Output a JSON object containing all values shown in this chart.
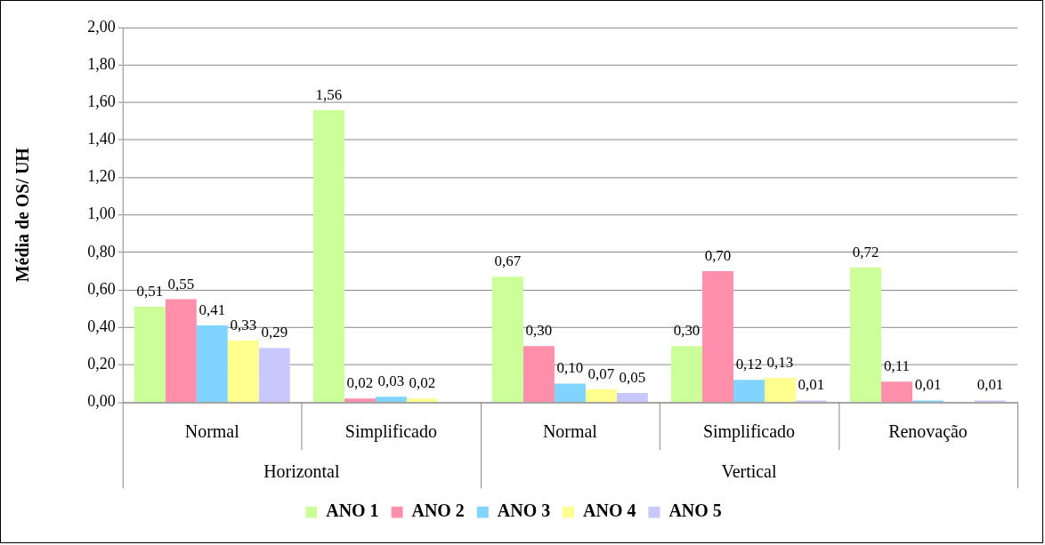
{
  "chart_data": {
    "type": "bar",
    "ylabel": "Média de OS/ UH",
    "categories": [
      "Normal",
      "Simplificado",
      "Normal",
      "Simplificado",
      "Renovação"
    ],
    "annotations": [
      "Horizontal",
      "Vertical"
    ],
    "series": [
      {
        "name": "ANO 1",
        "color": "#ccff99",
        "values": [
          0.51,
          1.56,
          0.67,
          0.3,
          0.72
        ],
        "value_labels": [
          "0,51",
          "1,56",
          "0,67",
          "0,30",
          "0,72"
        ]
      },
      {
        "name": "ANO 2",
        "color": "#ff8fab",
        "values": [
          0.55,
          0.02,
          0.3,
          0.7,
          0.11
        ],
        "value_labels": [
          "0,55",
          "0,02",
          "0,30",
          "0,70",
          "0,11"
        ]
      },
      {
        "name": "ANO 3",
        "color": "#80d4ff",
        "values": [
          0.41,
          0.03,
          0.1,
          0.12,
          0.01
        ],
        "value_labels": [
          "0,41",
          "0,03",
          "0,10",
          "0,12",
          "0,01"
        ]
      },
      {
        "name": "ANO 4",
        "color": "#ffff8f",
        "values": [
          0.33,
          0.02,
          0.07,
          0.13,
          null
        ],
        "value_labels": [
          "0,33",
          "0,02",
          "0,07",
          "0,13",
          null
        ]
      },
      {
        "name": "ANO 5",
        "color": "#c8c8ff",
        "values": [
          0.29,
          null,
          0.05,
          0.01,
          0.01
        ],
        "value_labels": [
          "0,29",
          null,
          "0,05",
          "0,01",
          "0,01"
        ]
      }
    ],
    "ylim": [
      0,
      2
    ],
    "yticks": [
      {
        "value": 0,
        "label": "0,00"
      },
      {
        "value": 0.2,
        "label": "0,20"
      },
      {
        "value": 0.4,
        "label": "0,40"
      },
      {
        "value": 0.6,
        "label": "0,60"
      },
      {
        "value": 0.8,
        "label": "0,80"
      },
      {
        "value": 1,
        "label": "1,00"
      },
      {
        "value": 1.2,
        "label": "1,20"
      },
      {
        "value": 1.4,
        "label": "1,40"
      },
      {
        "value": 1.6,
        "label": "1,60"
      },
      {
        "value": 1.8,
        "label": "1,80"
      },
      {
        "value": 2,
        "label": "2,00"
      }
    ],
    "grid": "y",
    "legend": "bottom"
  }
}
